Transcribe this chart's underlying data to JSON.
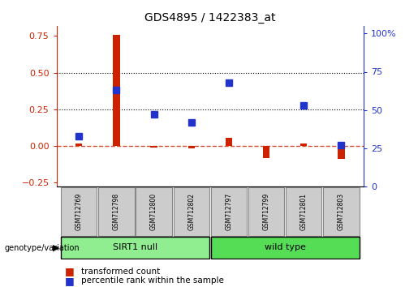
{
  "title": "GDS4895 / 1422383_at",
  "samples": [
    "GSM712769",
    "GSM712798",
    "GSM712800",
    "GSM712802",
    "GSM712797",
    "GSM712799",
    "GSM712801",
    "GSM712803"
  ],
  "groups": [
    "SIRT1 null",
    "SIRT1 null",
    "SIRT1 null",
    "SIRT1 null",
    "wild type",
    "wild type",
    "wild type",
    "wild type"
  ],
  "transformed_count": [
    0.012,
    0.76,
    -0.012,
    -0.018,
    0.055,
    -0.085,
    0.012,
    -0.09
  ],
  "percentile_rank_pct": [
    33,
    63,
    47,
    42,
    68,
    null,
    53,
    27
  ],
  "red_color": "#CC2200",
  "blue_color": "#2233CC",
  "ylim_left": [
    -0.28,
    0.82
  ],
  "ylim_right": [
    0,
    105
  ],
  "yticks_left": [
    -0.25,
    0.0,
    0.25,
    0.5,
    0.75
  ],
  "yticks_right": [
    0,
    25,
    50,
    75,
    100
  ],
  "hlines": [
    0.25,
    0.5
  ],
  "sirt1_color": "#90EE90",
  "wild_color": "#55DD55",
  "label_bg": "#CCCCCC"
}
